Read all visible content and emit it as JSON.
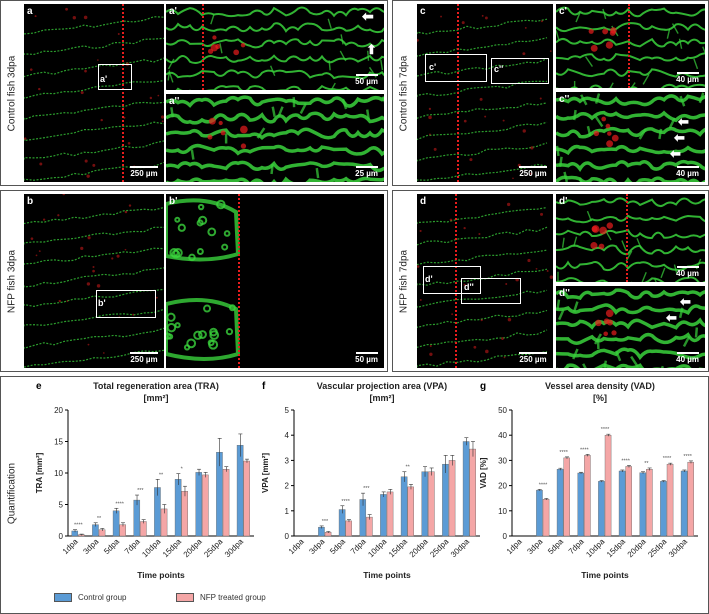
{
  "panel_labels": {
    "a": "a",
    "a1": "a'",
    "a2": "a''",
    "b": "b",
    "b1": "b'",
    "c": "c",
    "c1": "c'",
    "c2": "c''",
    "d": "d",
    "d1": "d'",
    "d2": "d''"
  },
  "row_labels": {
    "control3": "Control fish 3dpa",
    "nfp3": "NFP fish 3dpa",
    "control7": "Control fish 7dpa",
    "nfp7": "NFP fish 7dpa",
    "quant": "Quantification"
  },
  "scalebars": {
    "s250": "250 µm",
    "s50": "50 µm",
    "s25": "25 µm",
    "s40": "40 µm"
  },
  "colors": {
    "vessel": "#39d23c",
    "red_marker": "#e81d1d",
    "control": "#5b9bd5",
    "nfp": "#f4a6a6"
  },
  "charts": {
    "e": {
      "letter": "e",
      "title": "Total regeneration area (TRA)",
      "unit": "[mm²]",
      "ylabel": "TRA [mm²]",
      "xlabel": "Time points"
    },
    "f": {
      "letter": "f",
      "title": "Vascular projection area (VPA)",
      "unit": "[mm²]",
      "ylabel": "VPA [mm²]",
      "xlabel": "Time points"
    },
    "g": {
      "letter": "g",
      "title": "Vessel area density (VAD)",
      "unit": "[%]",
      "ylabel": "VAD [%]",
      "xlabel": "Time points"
    }
  },
  "legend": {
    "control": "Control group",
    "nfp": "NFP treated group"
  },
  "chart_data": [
    {
      "type": "bar",
      "title": "Total regeneration area (TRA) [mm²]",
      "xlabel": "Time points",
      "ylabel": "TRA [mm²]",
      "ylim": [
        0,
        20
      ],
      "yticks": [
        0,
        5,
        10,
        15,
        20
      ],
      "categories": [
        "1dpa",
        "3dpa",
        "5dpa",
        "7dpa",
        "10dpa",
        "15dpa",
        "20dpa",
        "25dpa",
        "30dpa"
      ],
      "series": [
        {
          "name": "Control group",
          "values": [
            0.8,
            1.8,
            4.0,
            5.7,
            7.7,
            9.0,
            10.1,
            13.3,
            14.4
          ],
          "errors": [
            0.2,
            0.3,
            0.4,
            0.8,
            1.3,
            0.9,
            0.5,
            2.2,
            1.8
          ]
        },
        {
          "name": "NFP treated group",
          "values": [
            0.2,
            1.0,
            1.8,
            2.3,
            4.3,
            7.1,
            9.7,
            10.6,
            11.9
          ],
          "errors": [
            0.1,
            0.2,
            0.3,
            0.3,
            0.7,
            0.8,
            0.4,
            0.4,
            0.3
          ]
        }
      ],
      "significance": [
        "****",
        "**",
        "****",
        "***",
        "**",
        "*",
        "",
        "",
        ""
      ],
      "grid": false,
      "legend": "bottom-left"
    },
    {
      "type": "bar",
      "title": "Vascular projection area (VPA) [mm²]",
      "xlabel": "Time points",
      "ylabel": "VPA [mm²]",
      "ylim": [
        0,
        5
      ],
      "yticks": [
        0,
        1,
        2,
        3,
        4,
        5
      ],
      "categories": [
        "1dpa",
        "3dpa",
        "5dpa",
        "7dpa",
        "10dpa",
        "15dpa",
        "20dpa",
        "25dpa",
        "30dpa"
      ],
      "series": [
        {
          "name": "Control group",
          "values": [
            0.0,
            0.35,
            1.05,
            1.45,
            1.65,
            2.35,
            2.55,
            2.85,
            3.75
          ],
          "errors": [
            0,
            0.05,
            0.15,
            0.25,
            0.1,
            0.2,
            0.2,
            0.35,
            0.15
          ]
        },
        {
          "name": "NFP treated group",
          "values": [
            0.0,
            0.15,
            0.6,
            0.75,
            1.75,
            1.95,
            2.55,
            3.0,
            3.45
          ],
          "errors": [
            0,
            0.03,
            0.05,
            0.1,
            0.1,
            0.1,
            0.15,
            0.2,
            0.3
          ]
        }
      ],
      "significance": [
        "",
        "***",
        "****",
        "***",
        "",
        "**",
        "",
        "",
        ""
      ],
      "grid": false,
      "legend": "bottom-left"
    },
    {
      "type": "bar",
      "title": "Vessel area density (VAD) [%]",
      "xlabel": "Time points",
      "ylabel": "VAD [%]",
      "ylim": [
        0,
        50
      ],
      "yticks": [
        0,
        10,
        20,
        30,
        40,
        50
      ],
      "categories": [
        "1dpa",
        "3dpa",
        "5dpa",
        "7dpa",
        "10dpa",
        "15dpa",
        "20dpa",
        "25dpa",
        "30dpa"
      ],
      "series": [
        {
          "name": "Control group",
          "values": [
            0,
            18.2,
            26.5,
            25.0,
            21.7,
            25.8,
            25.1,
            21.7,
            25.8
          ],
          "errors": [
            0,
            0.3,
            0.4,
            0.3,
            0.3,
            0.4,
            0.4,
            0.3,
            0.4
          ]
        },
        {
          "name": "NFP treated group",
          "values": [
            0,
            14.6,
            31.0,
            32.0,
            40.0,
            27.6,
            26.5,
            28.5,
            29.3
          ],
          "errors": [
            0,
            0.3,
            0.4,
            0.4,
            0.4,
            0.4,
            0.5,
            0.4,
            0.5
          ]
        }
      ],
      "significance": [
        "",
        "****",
        "****",
        "****",
        "****",
        "****",
        "**",
        "****",
        "****"
      ],
      "grid": false,
      "legend": "bottom-left"
    }
  ]
}
